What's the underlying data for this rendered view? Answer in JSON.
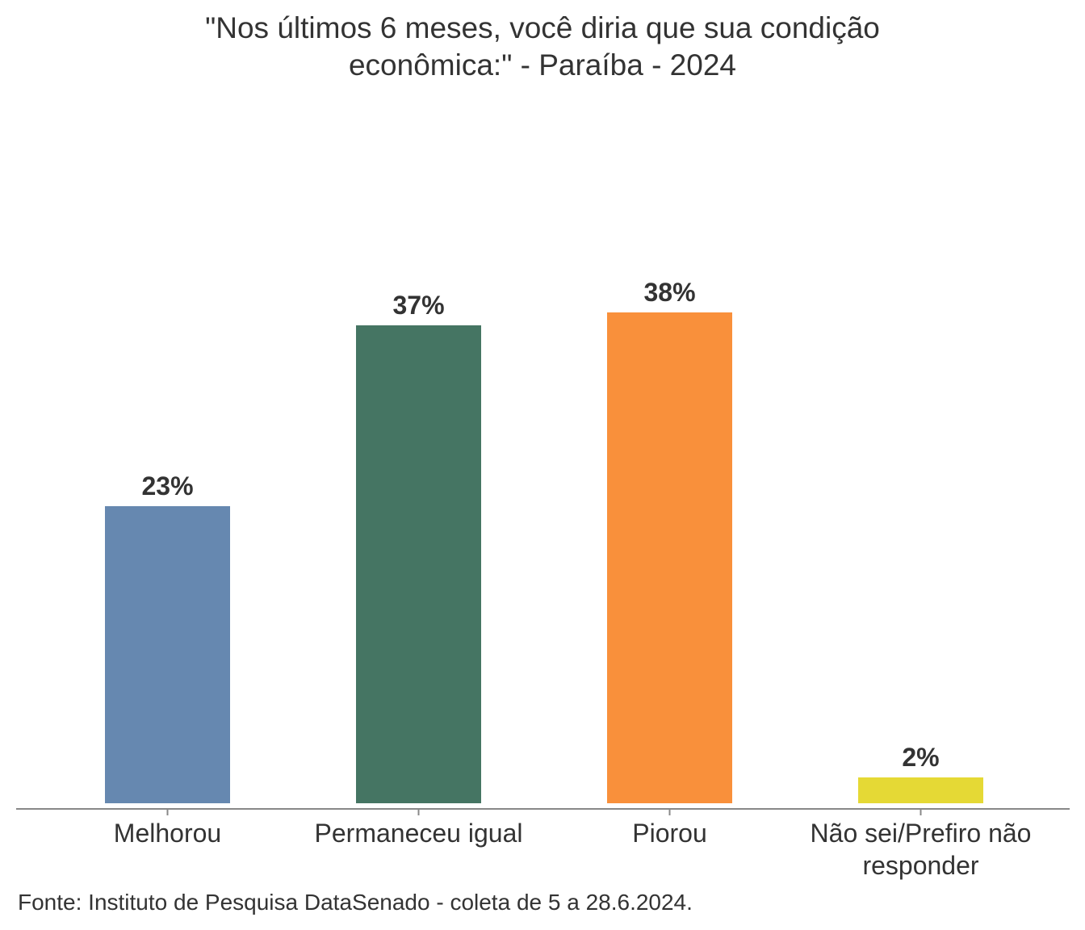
{
  "chart_data": {
    "type": "bar",
    "title": "\"Nos últimos 6 meses, você diria que sua condição econômica:\" - Paraíba - 2024",
    "categories": [
      "Melhorou",
      "Permaneceu igual",
      "Piorou",
      "Não sei/Prefiro não responder"
    ],
    "values": [
      23,
      37,
      38,
      2
    ],
    "value_labels": [
      "23%",
      "37%",
      "38%",
      "2%"
    ],
    "colors": [
      "#6688b0",
      "#457563",
      "#f9903b",
      "#e5d935"
    ],
    "source": "Fonte: Instituto de Pesquisa DataSenado - coleta de 5 a 28.6.2024."
  }
}
